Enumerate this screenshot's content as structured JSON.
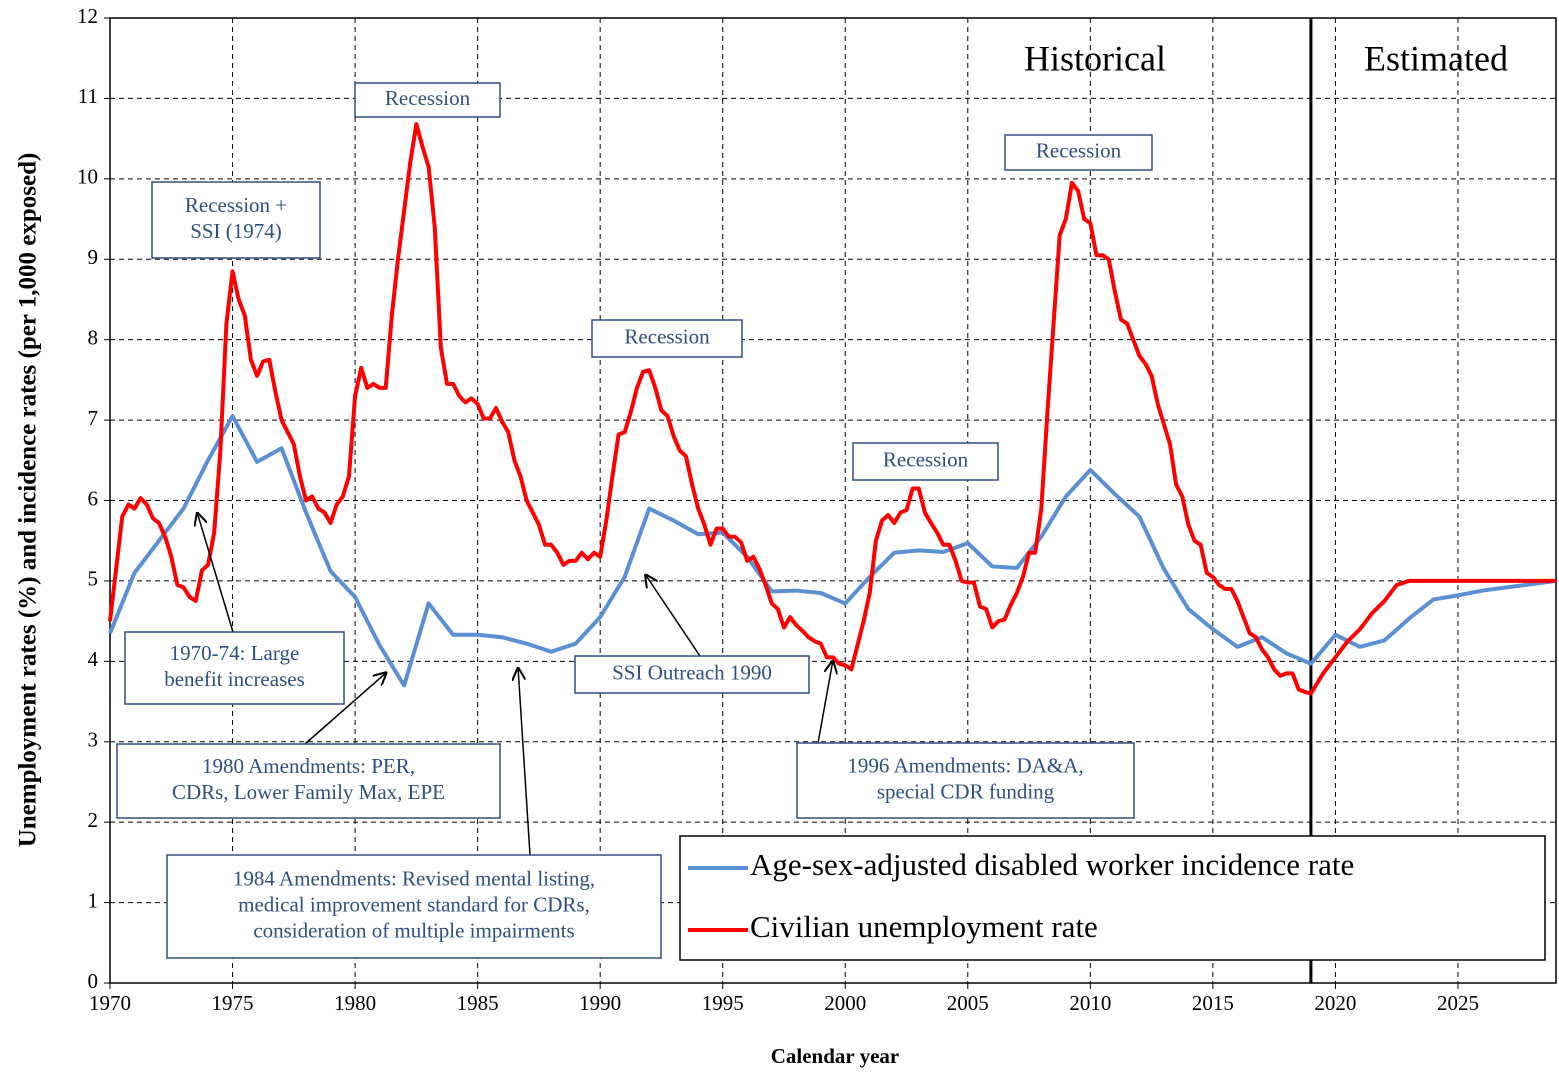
{
  "chart_data": {
    "type": "line",
    "x_label": "Calendar year",
    "y_label": "Unemployment rates (%) and incidence rates (per 1,000 exposed)",
    "xlim": [
      1970,
      2029
    ],
    "ylim": [
      0,
      12
    ],
    "xticks": [
      1970,
      1975,
      1980,
      1985,
      1990,
      1995,
      2000,
      2005,
      2010,
      2015,
      2020,
      2025
    ],
    "yticks": [
      0,
      1,
      2,
      3,
      4,
      5,
      6,
      7,
      8,
      9,
      10,
      11,
      12
    ],
    "grid": true,
    "grid_style": "dashed",
    "legend": "lower right",
    "projection_start": 2019,
    "period_labels": [
      "Historical",
      "Estimated"
    ],
    "series": [
      {
        "name": "Age-sex-adjusted disabled worker incidence rate",
        "color": "#5b8fd4",
        "x": [
          1970,
          1971,
          1972,
          1973,
          1974,
          1975,
          1976,
          1977,
          1978,
          1979,
          1980,
          1981,
          1982,
          1983,
          1984,
          1985,
          1986,
          1987,
          1988,
          1989,
          1990,
          1991,
          1992,
          1993,
          1994,
          1995,
          1996,
          1997,
          1998,
          1999,
          2000,
          2001,
          2002,
          2003,
          2004,
          2005,
          2006,
          2007,
          2008,
          2009,
          2010,
          2011,
          2012,
          2013,
          2014,
          2015,
          2016,
          2017,
          2018,
          2019,
          2020,
          2021,
          2022,
          2023,
          2024,
          2025,
          2026,
          2027,
          2028,
          2029
        ],
        "values": [
          4.35,
          5.1,
          5.5,
          5.9,
          6.5,
          7.05,
          6.48,
          6.65,
          5.85,
          5.12,
          4.8,
          4.2,
          3.7,
          4.72,
          4.33,
          4.33,
          4.3,
          4.22,
          4.12,
          4.22,
          4.55,
          5.05,
          5.9,
          5.75,
          5.58,
          5.6,
          5.3,
          4.87,
          4.88,
          4.85,
          4.72,
          5.05,
          5.35,
          5.38,
          5.36,
          5.47,
          5.18,
          5.16,
          5.55,
          6.05,
          6.38,
          6.08,
          5.8,
          5.15,
          4.65,
          4.4,
          4.18,
          4.3,
          4.1,
          3.97,
          4.33,
          4.18,
          4.26,
          4.53,
          4.77,
          4.82,
          4.88,
          4.92,
          4.96,
          5.0
        ]
      },
      {
        "name": "Civilian unemployment rate",
        "color": "#ff0000",
        "x": [
          1970,
          1970.25,
          1970.5,
          1970.75,
          1971,
          1971.25,
          1971.5,
          1971.75,
          1972,
          1972.25,
          1972.5,
          1972.75,
          1973,
          1973.25,
          1973.5,
          1973.75,
          1974,
          1974.25,
          1974.5,
          1974.75,
          1975,
          1975.25,
          1975.5,
          1975.75,
          1976,
          1976.25,
          1976.5,
          1976.75,
          1977,
          1977.5,
          1977.75,
          1978,
          1978.25,
          1978.5,
          1978.75,
          1979,
          1979.25,
          1979.5,
          1979.75,
          1980,
          1980.25,
          1980.5,
          1980.75,
          1981,
          1981.25,
          1981.5,
          1981.75,
          1982,
          1982.25,
          1982.5,
          1982.75,
          1983,
          1983.25,
          1983.5,
          1983.75,
          1984,
          1984.25,
          1984.5,
          1984.75,
          1985,
          1985.25,
          1985.5,
          1985.75,
          1986,
          1986.25,
          1986.5,
          1986.75,
          1987,
          1987.25,
          1987.5,
          1987.75,
          1988,
          1988.25,
          1988.5,
          1988.75,
          1989,
          1989.25,
          1989.5,
          1989.75,
          1990,
          1990.25,
          1990.5,
          1990.75,
          1991,
          1991.25,
          1991.5,
          1991.75,
          1992,
          1992.25,
          1992.5,
          1992.75,
          1993,
          1993.25,
          1993.5,
          1993.75,
          1994,
          1994.25,
          1994.5,
          1994.75,
          1995,
          1995.25,
          1995.5,
          1995.75,
          1996,
          1996.25,
          1996.5,
          1996.75,
          1997,
          1997.25,
          1997.5,
          1997.75,
          1998,
          1998.25,
          1998.5,
          1998.75,
          1999,
          1999.25,
          1999.5,
          1999.75,
          2000,
          2000.25,
          2000.5,
          2000.75,
          2001,
          2001.25,
          2001.5,
          2001.75,
          2002,
          2002.25,
          2002.5,
          2002.75,
          2003,
          2003.25,
          2003.5,
          2003.75,
          2004,
          2004.25,
          2004.5,
          2004.75,
          2005,
          2005.25,
          2005.5,
          2005.75,
          2006,
          2006.25,
          2006.5,
          2006.75,
          2007,
          2007.25,
          2007.5,
          2007.75,
          2008,
          2008.25,
          2008.5,
          2008.75,
          2009,
          2009.25,
          2009.5,
          2009.75,
          2010,
          2010.25,
          2010.5,
          2010.75,
          2011,
          2011.25,
          2011.5,
          2011.75,
          2012,
          2012.25,
          2012.5,
          2012.75,
          2013,
          2013.25,
          2013.5,
          2013.75,
          2014,
          2014.25,
          2014.5,
          2014.75,
          2015,
          2015.25,
          2015.5,
          2015.75,
          2016,
          2016.25,
          2016.5,
          2016.75,
          2017,
          2017.25,
          2017.5,
          2017.75,
          2018,
          2018.25,
          2018.5,
          2018.75,
          2019,
          2019.5,
          2020,
          2020.5,
          2021,
          2021.5,
          2022,
          2022.5,
          2023,
          2029
        ],
        "values": [
          4.5,
          5.15,
          5.8,
          5.95,
          5.9,
          6.03,
          5.95,
          5.78,
          5.72,
          5.55,
          5.3,
          4.95,
          4.92,
          4.8,
          4.75,
          5.13,
          5.2,
          5.6,
          6.6,
          8.2,
          8.85,
          8.5,
          8.3,
          7.75,
          7.55,
          7.73,
          7.75,
          7.35,
          7.0,
          6.7,
          6.3,
          6.0,
          6.05,
          5.9,
          5.85,
          5.72,
          5.95,
          6.05,
          6.3,
          7.3,
          7.65,
          7.4,
          7.45,
          7.4,
          7.4,
          8.3,
          9.0,
          9.6,
          10.2,
          10.68,
          10.4,
          10.15,
          9.4,
          7.9,
          7.45,
          7.45,
          7.3,
          7.22,
          7.27,
          7.2,
          7.02,
          7.02,
          7.15,
          6.98,
          6.85,
          6.5,
          6.3,
          6.0,
          5.85,
          5.7,
          5.45,
          5.45,
          5.35,
          5.2,
          5.25,
          5.25,
          5.35,
          5.27,
          5.35,
          5.3,
          5.75,
          6.3,
          6.82,
          6.85,
          7.1,
          7.4,
          7.6,
          7.62,
          7.4,
          7.12,
          7.05,
          6.8,
          6.62,
          6.55,
          6.2,
          5.9,
          5.7,
          5.45,
          5.65,
          5.65,
          5.55,
          5.55,
          5.48,
          5.25,
          5.3,
          5.15,
          4.95,
          4.72,
          4.65,
          4.42,
          4.55,
          4.45,
          4.38,
          4.3,
          4.25,
          4.22,
          4.05,
          4.05,
          3.97,
          3.95,
          3.9,
          4.2,
          4.5,
          4.85,
          5.5,
          5.75,
          5.82,
          5.72,
          5.85,
          5.88,
          6.15,
          6.15,
          5.85,
          5.72,
          5.6,
          5.45,
          5.45,
          5.25,
          5.0,
          4.98,
          4.98,
          4.68,
          4.65,
          4.42,
          4.5,
          4.52,
          4.7,
          4.85,
          5.05,
          5.35,
          5.35,
          5.9,
          7.1,
          8.2,
          9.3,
          9.5,
          9.95,
          9.85,
          9.5,
          9.45,
          9.05,
          9.05,
          9.0,
          8.6,
          8.25,
          8.2,
          8.0,
          7.8,
          7.7,
          7.55,
          7.2,
          6.95,
          6.7,
          6.2,
          6.05,
          5.7,
          5.5,
          5.45,
          5.1,
          5.05,
          4.95,
          4.9,
          4.9,
          4.75,
          4.55,
          4.35,
          4.3,
          4.15,
          4.05,
          3.9,
          3.82,
          3.85,
          3.85,
          3.65,
          3.62,
          3.6,
          3.85,
          4.05,
          4.25,
          4.4,
          4.6,
          4.75,
          4.95,
          5.0,
          5.0
        ]
      }
    ],
    "annotations": [
      {
        "lines": [
          "Recession"
        ]
      },
      {
        "lines": [
          "Recession +",
          "SSI (1974)"
        ]
      },
      {
        "lines": [
          "Recession"
        ]
      },
      {
        "lines": [
          "Recession"
        ]
      },
      {
        "lines": [
          "Recession"
        ]
      },
      {
        "lines": [
          "1970-74: Large",
          "benefit  increases"
        ]
      },
      {
        "lines": [
          "SSI Outreach 1990"
        ]
      },
      {
        "lines": [
          "1980 Amendments: PER,",
          "CDRs, Lower Family Max, EPE"
        ]
      },
      {
        "lines": [
          "1984 Amendments: Revised mental listing,",
          "medical improvement standard for CDRs,",
          "consideration of multiple  impairments"
        ]
      },
      {
        "lines": [
          "1996 Amendments: DA&A,",
          "special CDR funding"
        ]
      }
    ]
  }
}
